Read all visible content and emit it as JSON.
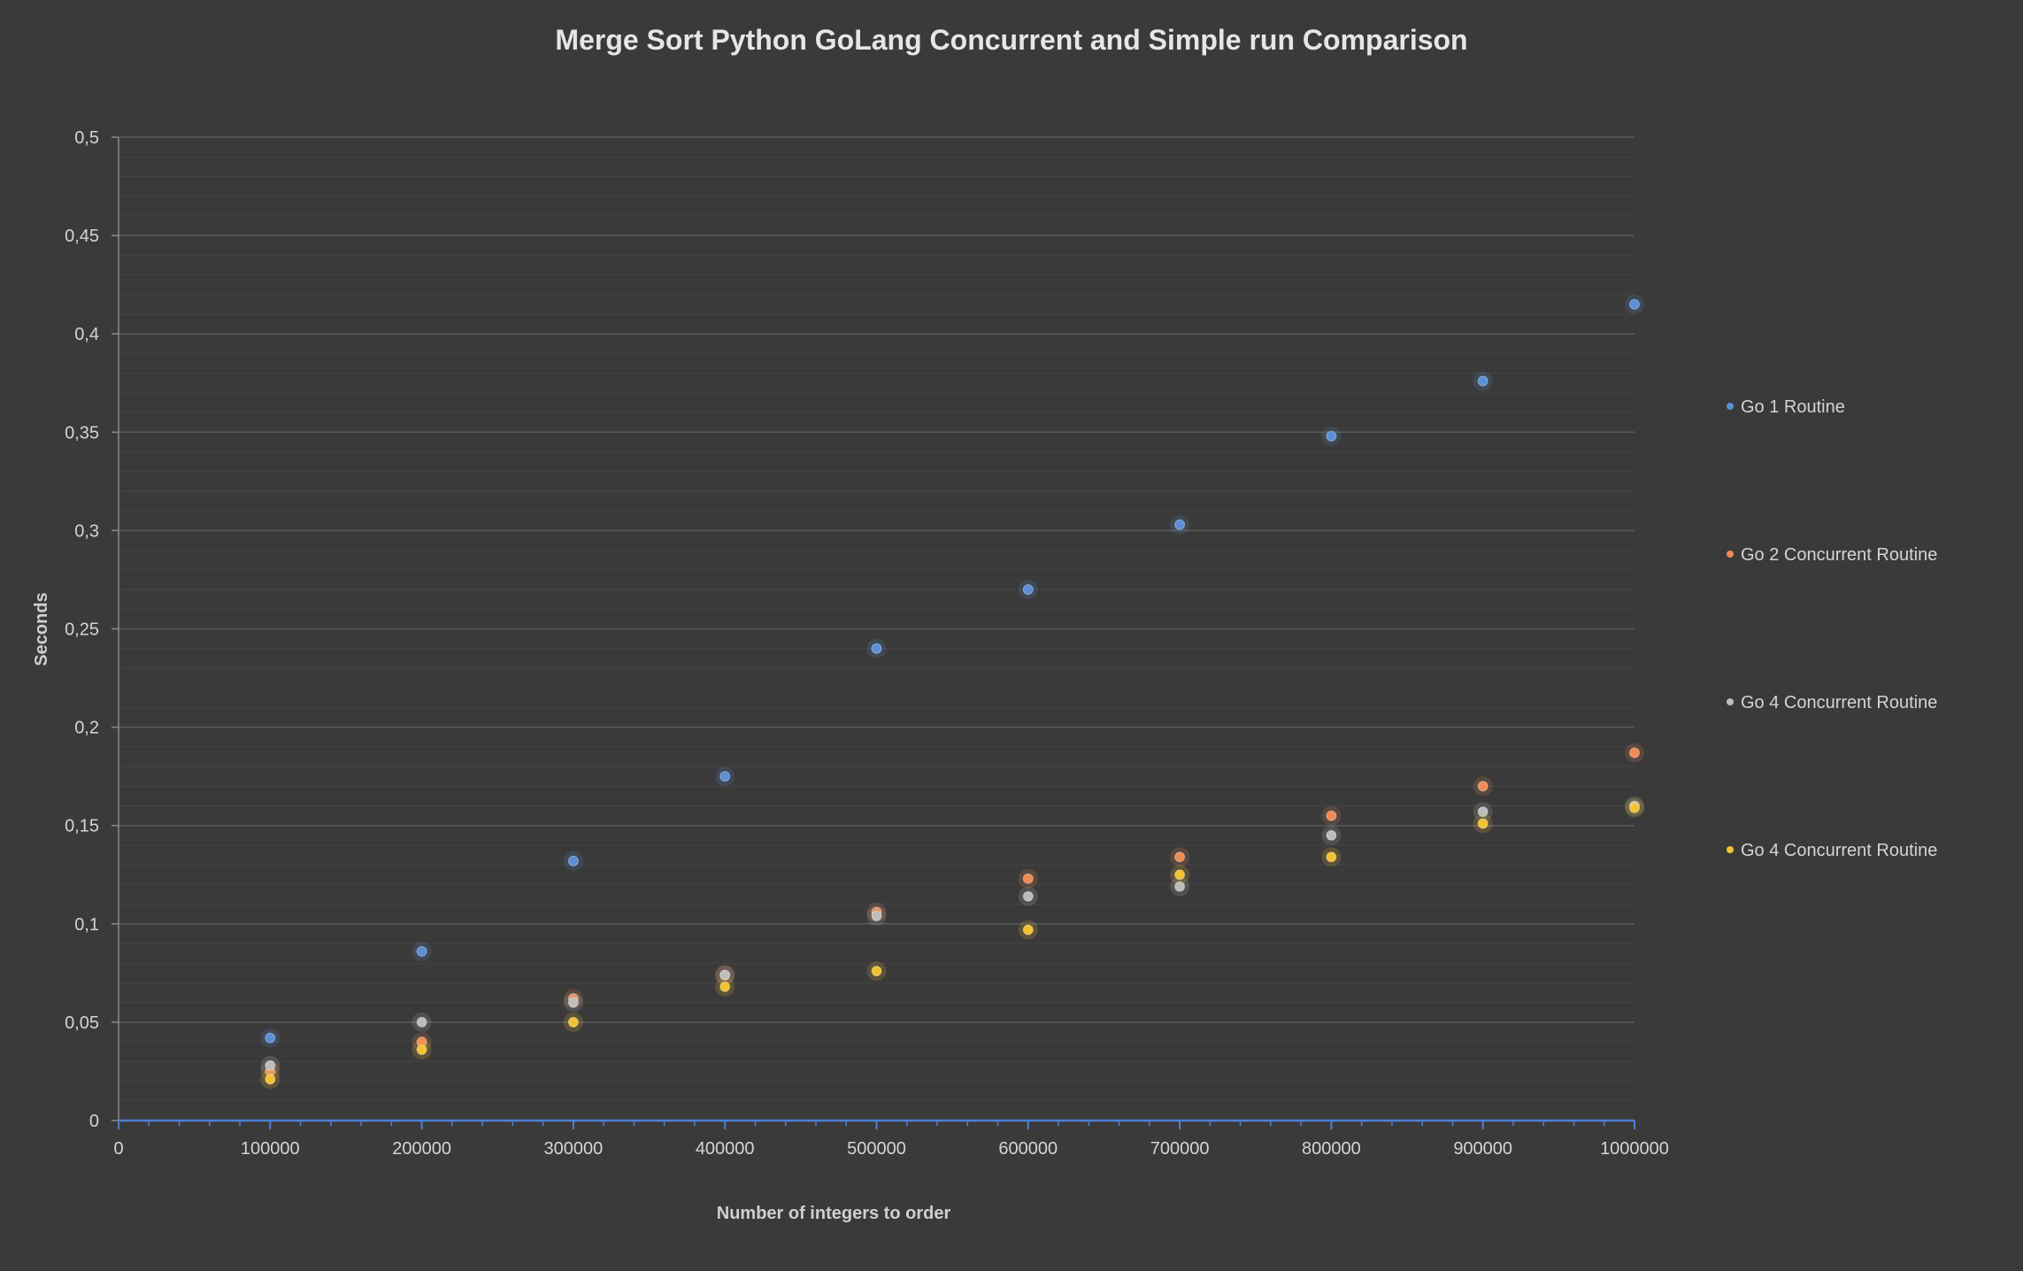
{
  "chart_data": {
    "type": "scatter",
    "title": "Merge Sort Python GoLang Concurrent and Simple run Comparison",
    "xlabel": "Number of integers to order",
    "ylabel": "Seconds",
    "xlim": [
      0,
      1000000
    ],
    "ylim": [
      0,
      0.5
    ],
    "x_ticks": [
      0,
      100000,
      200000,
      300000,
      400000,
      500000,
      600000,
      700000,
      800000,
      900000,
      1000000
    ],
    "x_tick_labels": [
      "0",
      "100000",
      "200000",
      "300000",
      "400000",
      "500000",
      "600000",
      "700000",
      "800000",
      "900000",
      "1000000"
    ],
    "y_ticks": [
      0,
      0.05,
      0.1,
      0.15,
      0.2,
      0.25,
      0.3,
      0.35,
      0.4,
      0.45,
      0.5
    ],
    "y_tick_labels": [
      "0",
      "0,05",
      "0,1",
      "0,15",
      "0,2",
      "0,25",
      "0,3",
      "0,35",
      "0,4",
      "0,45",
      "0,5"
    ],
    "grid": true,
    "legend_position": "right",
    "series": [
      {
        "name": "Go 1 Routine",
        "color": "#5b8fd6",
        "x": [
          100000,
          200000,
          300000,
          400000,
          500000,
          600000,
          700000,
          800000,
          900000,
          1000000
        ],
        "y": [
          0.042,
          0.086,
          0.132,
          0.175,
          0.24,
          0.27,
          0.303,
          0.348,
          0.376,
          0.415
        ]
      },
      {
        "name": "Go 2 Concurrent Routine",
        "color": "#f08a55",
        "x": [
          100000,
          200000,
          300000,
          400000,
          500000,
          600000,
          700000,
          800000,
          900000,
          1000000
        ],
        "y": [
          0.025,
          0.04,
          0.062,
          0.074,
          0.106,
          0.123,
          0.134,
          0.155,
          0.17,
          0.187
        ]
      },
      {
        "name": "Go 4 Concurrent Routine",
        "color": "#bdbdbd",
        "x": [
          100000,
          200000,
          300000,
          400000,
          500000,
          600000,
          700000,
          800000,
          900000,
          1000000
        ],
        "y": [
          0.028,
          0.05,
          0.06,
          0.074,
          0.104,
          0.114,
          0.119,
          0.145,
          0.157,
          0.16
        ]
      },
      {
        "name": "Go 4 Concurrent Routine",
        "color": "#f2c232",
        "x": [
          100000,
          200000,
          300000,
          400000,
          500000,
          600000,
          700000,
          800000,
          900000,
          1000000
        ],
        "y": [
          0.021,
          0.036,
          0.05,
          0.068,
          0.076,
          0.097,
          0.125,
          0.134,
          0.151,
          0.159
        ]
      }
    ]
  }
}
